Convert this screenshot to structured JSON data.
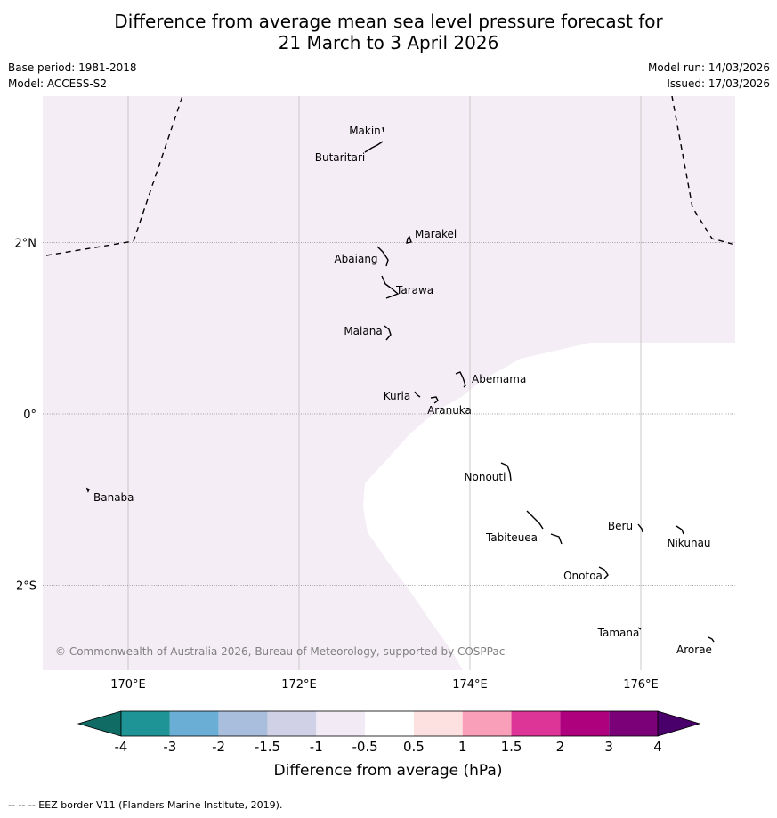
{
  "title": {
    "line1": "Difference from average mean sea level pressure forecast for",
    "line2": "21 March to 3 April 2026"
  },
  "meta": {
    "base_period": "Base period: 1981-2018",
    "model": "Model: ACCESS-S2",
    "model_run": "Model run: 14/03/2026",
    "issued": "Issued: 17/03/2026"
  },
  "map": {
    "lon_range": [
      169,
      177.1
    ],
    "lat_range": [
      -3,
      3.7
    ],
    "lon_ticks": [
      {
        "value": 170,
        "label": "170°E"
      },
      {
        "value": 172,
        "label": "172°E"
      },
      {
        "value": 174,
        "label": "174°E"
      },
      {
        "value": 176,
        "label": "176°E"
      }
    ],
    "lat_ticks": [
      {
        "value": 2,
        "label": "2°N"
      },
      {
        "value": 0,
        "label": "0°"
      },
      {
        "value": -2,
        "label": "2°S"
      }
    ],
    "shaded_class": "-1 to -0.5",
    "copyright": "© Commonwealth of Australia 2026, Bureau of Meteorology, supported by COSPPac",
    "islands": [
      {
        "name": "Makin",
        "lon": 172.98,
        "lat": 3.33
      },
      {
        "name": "Butaritari",
        "lon": 172.9,
        "lat": 3.1
      },
      {
        "name": "Marakei",
        "lon": 173.3,
        "lat": 2.02
      },
      {
        "name": "Abaiang",
        "lon": 172.97,
        "lat": 1.82
      },
      {
        "name": "Tarawa",
        "lon": 173.03,
        "lat": 1.4
      },
      {
        "name": "Maiana",
        "lon": 173.0,
        "lat": 0.94
      },
      {
        "name": "Abemama",
        "lon": 173.88,
        "lat": 0.4
      },
      {
        "name": "Kuria",
        "lon": 173.42,
        "lat": 0.22
      },
      {
        "name": "Aranuka",
        "lon": 173.62,
        "lat": 0.17
      },
      {
        "name": "Nonouti",
        "lon": 174.42,
        "lat": -0.65
      },
      {
        "name": "Tabiteuea",
        "lon": 174.88,
        "lat": -1.35
      },
      {
        "name": "Beru",
        "lon": 176.0,
        "lat": -1.33
      },
      {
        "name": "Nikunau",
        "lon": 176.45,
        "lat": -1.35
      },
      {
        "name": "Onotoa",
        "lon": 175.57,
        "lat": -1.83
      },
      {
        "name": "Tamana",
        "lon": 175.98,
        "lat": -2.5
      },
      {
        "name": "Arorae",
        "lon": 176.82,
        "lat": -2.65
      },
      {
        "name": "Banaba",
        "lon": 169.55,
        "lat": -0.88
      }
    ]
  },
  "legend": {
    "title": "Difference from average (hPa)",
    "bounds": [
      "-4",
      "-3",
      "-2",
      "-1.5",
      "-1",
      "-0.5",
      "0.5",
      "1",
      "1.5",
      "2",
      "3",
      "4"
    ],
    "colors": {
      "below_min": "#0f6b64",
      "bins": [
        "#1e9497",
        "#6aaed6",
        "#a9bddc",
        "#d0d1e6",
        "#f2ebf5",
        "#ffffff",
        "#fde0e0",
        "#f99fba",
        "#dd3497",
        "#ae017e",
        "#7a0177"
      ],
      "above_max": "#49006a"
    }
  },
  "footer": "-- -- -- EEZ border V11 (Flanders Marine Institute, 2019).",
  "colors": {
    "anomaly_fill": "#f4edf5",
    "grid": "#c8c8c8"
  }
}
